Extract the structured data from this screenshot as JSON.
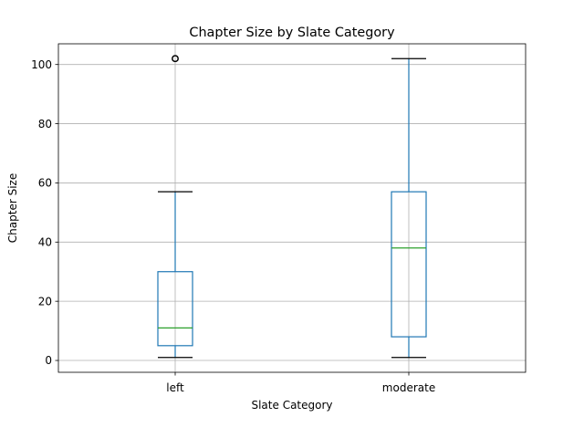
{
  "chart_data": {
    "type": "box",
    "title": "Chapter Size by Slate Category",
    "xlabel": "Slate Category",
    "ylabel": "Chapter Size",
    "ylim": [
      -4,
      107
    ],
    "yticks": [
      0,
      20,
      40,
      60,
      80,
      100
    ],
    "grid": true,
    "categories": [
      "left",
      "moderate"
    ],
    "boxes": [
      {
        "category": "left",
        "whisker_low": 1,
        "q1": 5,
        "median": 11,
        "q3": 30,
        "whisker_high": 57,
        "outliers": [
          102
        ]
      },
      {
        "category": "moderate",
        "whisker_low": 1,
        "q1": 8,
        "median": 38,
        "q3": 57,
        "whisker_high": 102,
        "outliers": []
      }
    ],
    "colors": {
      "box": "#1f77b4",
      "median": "#2ca02c",
      "cap": "#000000",
      "outlier": "#000000"
    }
  }
}
